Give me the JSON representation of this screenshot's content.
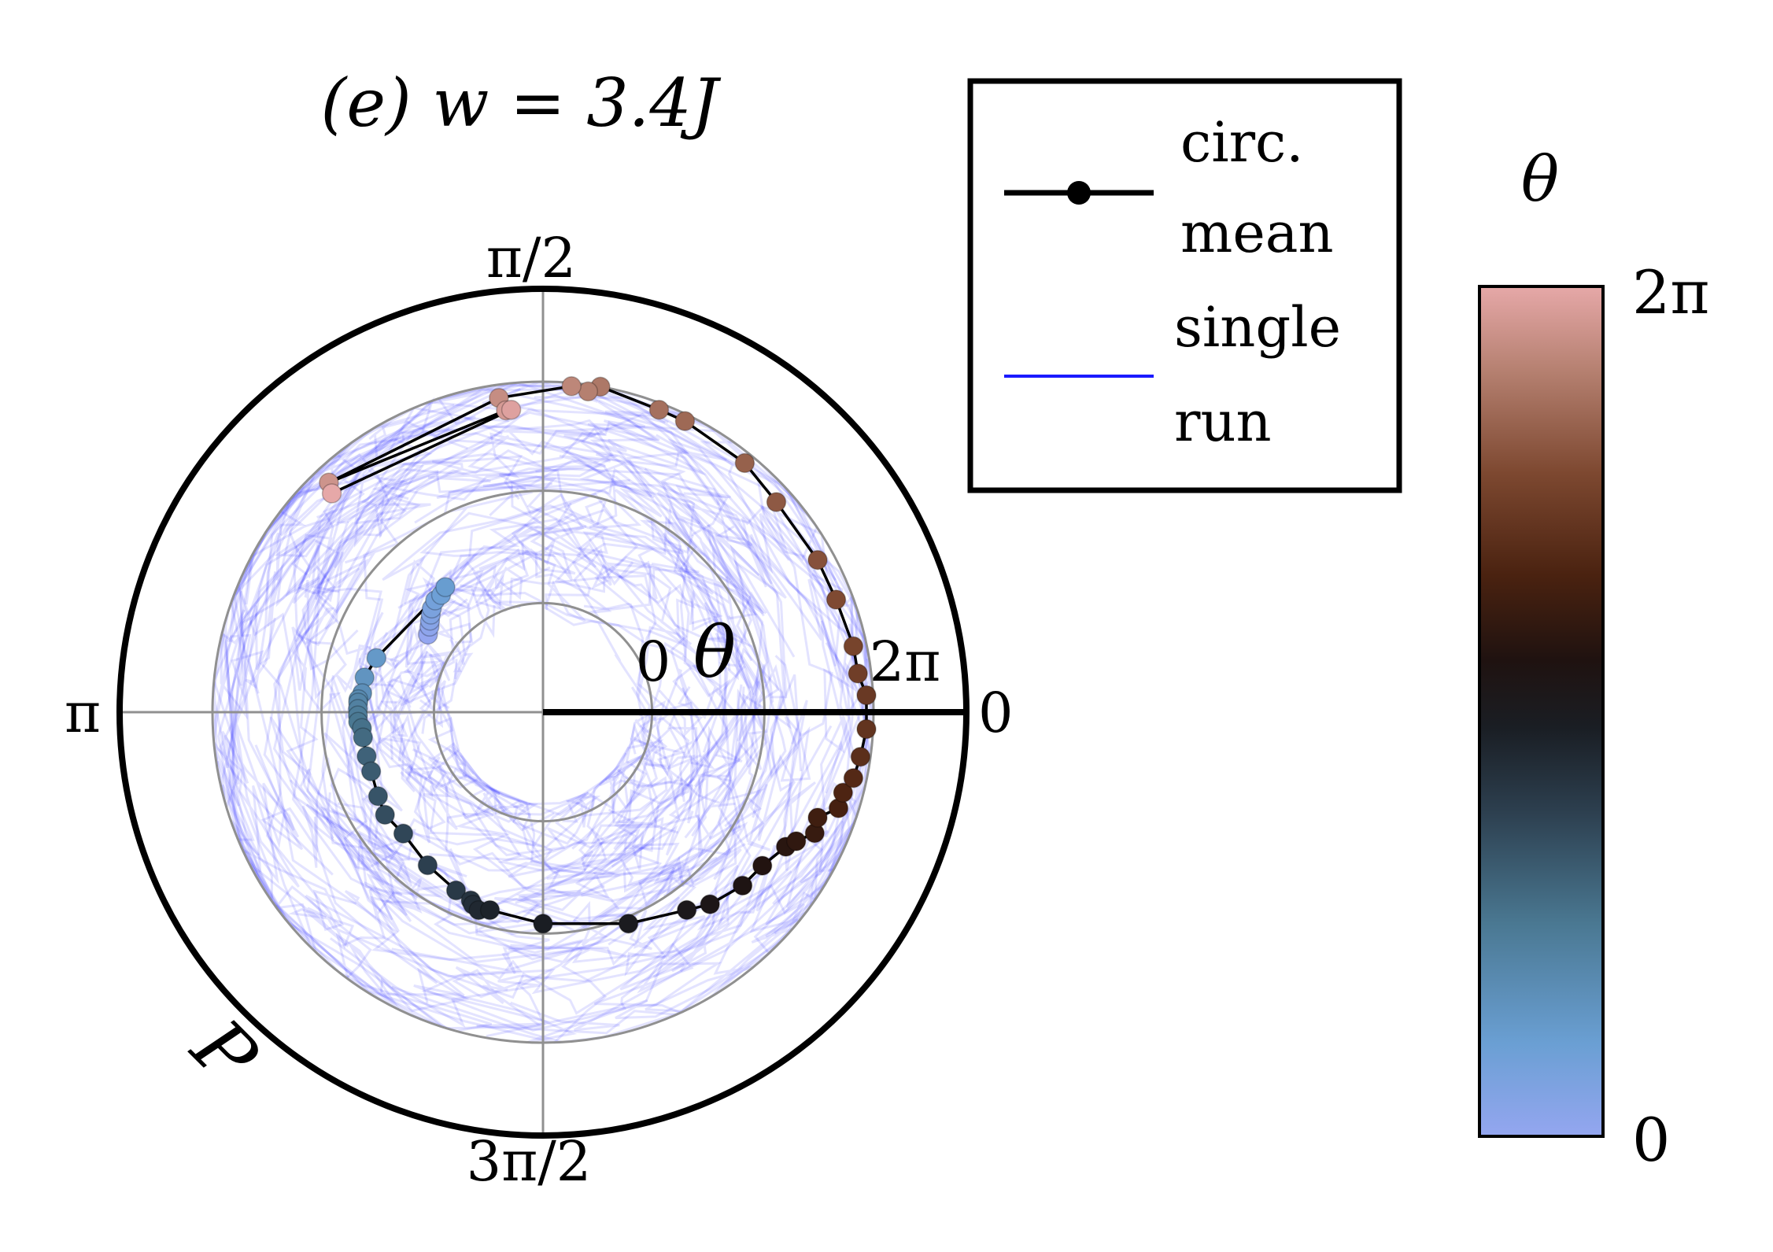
{
  "chart_data": {
    "type": "scatter",
    "projection": "polar",
    "title": "(e) w = 3.4J",
    "angular_ticks": [
      "0",
      "π/2",
      "π",
      "3π/2"
    ],
    "angular_tick_values": [
      0,
      1.5708,
      3.1416,
      4.7124
    ],
    "radial_axis_label": "P",
    "inner_axis_label": "θ",
    "inner_axis_ticks": [
      "0",
      "2π"
    ],
    "radial_circles": [
      0.33,
      0.67,
      1.0
    ],
    "rlim": [
      0,
      1.28
    ],
    "grid": true,
    "legend": {
      "placement": "top-right",
      "entries": [
        {
          "label_lines": [
            "circ.",
            "mean"
          ],
          "style": "black line with dot markers"
        },
        {
          "label_lines": [
            "single",
            "run"
          ],
          "style": "blue line"
        }
      ]
    },
    "colorbar": {
      "label": "θ",
      "tick_top": "2π",
      "tick_bottom": "0",
      "range": [
        0,
        6.2832
      ],
      "colors": [
        "#94a6f0",
        "#6a9fd3",
        "#4a7892",
        "#2d4050",
        "#1a1e24",
        "#1f1210",
        "#4a2210",
        "#7d4830",
        "#b58070",
        "#e6a8a8"
      ]
    },
    "series": [
      {
        "name": "circ. mean",
        "color_by": "theta",
        "theta_range": [
          0,
          6.2832
        ],
        "points_phi_deg": [
          146,
          143,
          141,
          139,
          137,
          134,
          131,
          128,
          162,
          169,
          174,
          176,
          177,
          179,
          181,
          183,
          185,
          188,
          194,
          199,
          207,
          213,
          221,
          233,
          244,
          249,
          250,
          252,
          255,
          270,
          292,
          306,
          311,
          319,
          325,
          331,
          333,
          336,
          339,
          342,
          345,
          348,
          352,
          357,
          3,
          7,
          12,
          21,
          29,
          42,
          51,
          64,
          69,
          80,
          82,
          85,
          98,
          133,
          97,
          96,
          134
        ],
        "points_r": [
          0.42,
          0.43,
          0.44,
          0.45,
          0.46,
          0.47,
          0.47,
          0.48,
          0.53,
          0.55,
          0.55,
          0.56,
          0.56,
          0.56,
          0.56,
          0.56,
          0.55,
          0.55,
          0.55,
          0.55,
          0.56,
          0.57,
          0.56,
          0.58,
          0.6,
          0.61,
          0.62,
          0.63,
          0.62,
          0.64,
          0.69,
          0.74,
          0.77,
          0.8,
          0.81,
          0.84,
          0.86,
          0.9,
          0.89,
          0.94,
          0.94,
          0.96,
          0.97,
          0.98,
          0.98,
          0.96,
          0.96,
          0.95,
          0.95,
          0.95,
          0.97,
          0.98,
          0.98,
          1.0,
          0.98,
          0.99,
          0.96,
          0.95,
          0.92,
          0.92,
          0.92
        ]
      },
      {
        "name": "single run",
        "color": "#1a1aff",
        "opacity": 0.12,
        "r_range": [
          0.28,
          1.0
        ]
      }
    ]
  }
}
